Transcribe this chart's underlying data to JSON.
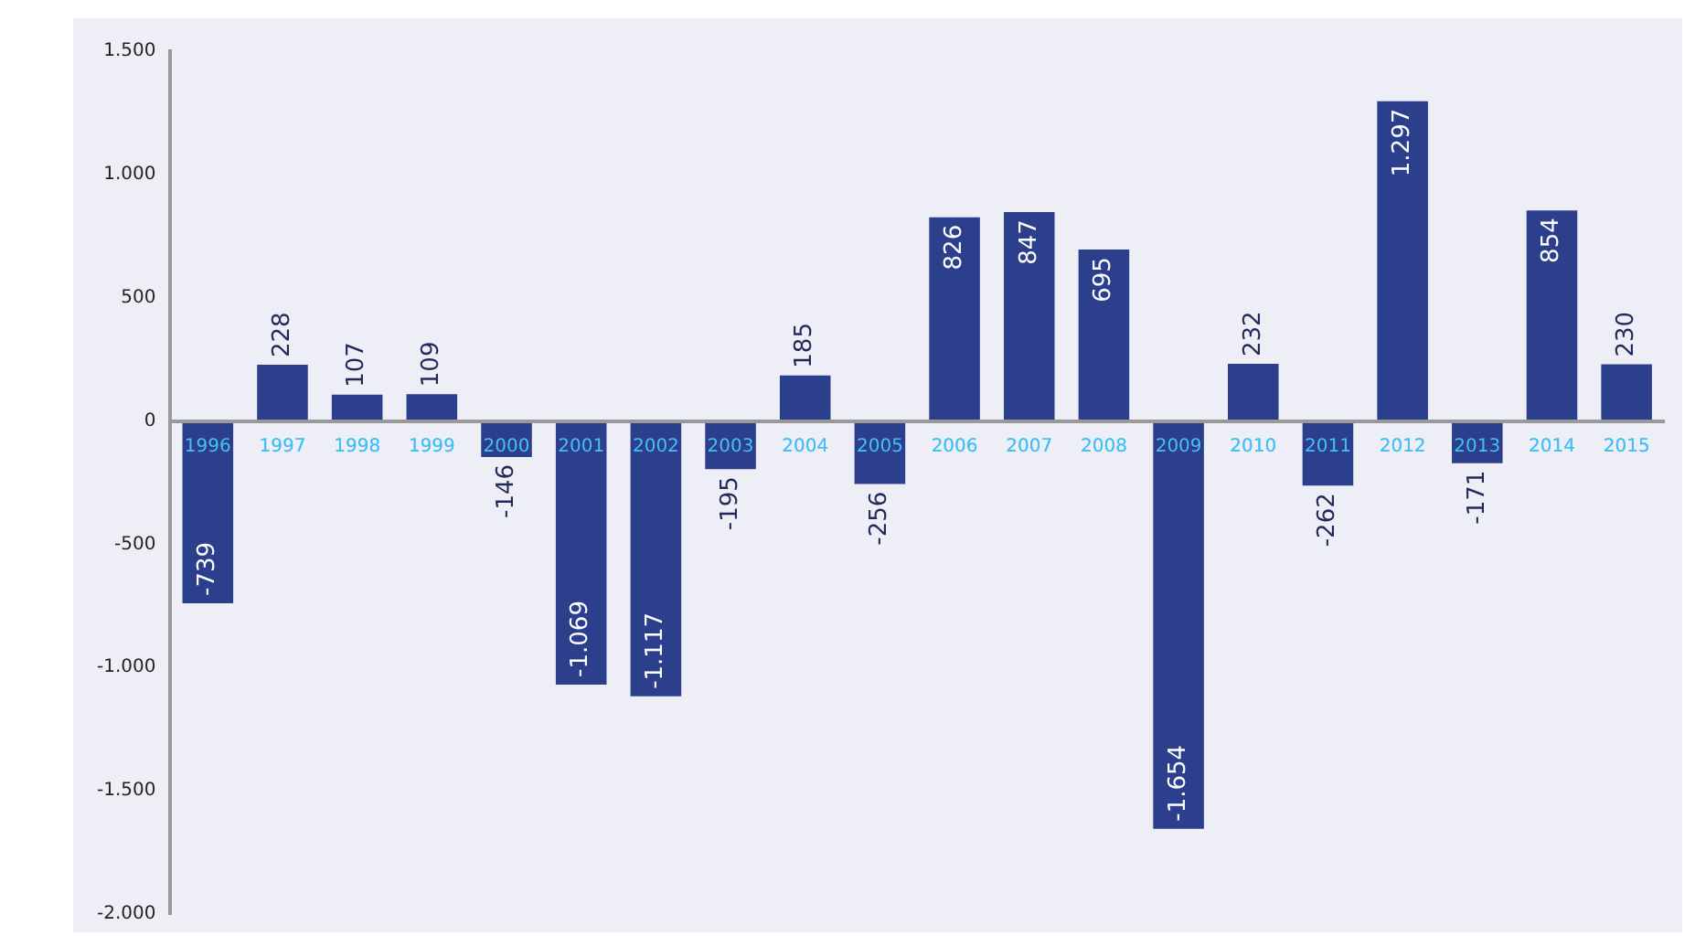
{
  "chart_data": {
    "type": "bar",
    "categories": [
      "1996",
      "1997",
      "1998",
      "1999",
      "2000",
      "2001",
      "2002",
      "2003",
      "2004",
      "2005",
      "2006",
      "2007",
      "2008",
      "2009",
      "2010",
      "2011",
      "2012",
      "2013",
      "2014",
      "2015"
    ],
    "values": [
      -739,
      228,
      107,
      109,
      -146,
      -1069,
      -1117,
      -195,
      185,
      -256,
      826,
      847,
      695,
      -1654,
      232,
      -262,
      1297,
      -171,
      854,
      230
    ],
    "value_labels": [
      "-739",
      "228",
      "107",
      "109",
      "-146",
      "-1.069",
      "-1.117",
      "-195",
      "185",
      "-256",
      "826",
      "847",
      "695",
      "-1.654",
      "232",
      "-262",
      "1.297",
      "-171",
      "854",
      "230"
    ],
    "color": "#2b3f8c",
    "ylim": [
      -2000,
      1500
    ],
    "yticks": [
      {
        "value": -2000,
        "label": "-2.000"
      },
      {
        "value": -1500,
        "label": "-1.500"
      },
      {
        "value": -1000,
        "label": "-1.000"
      },
      -500,
      0,
      500,
      {
        "value": 1000,
        "label": "1.000"
      },
      {
        "value": 1500,
        "label": "1.500"
      }
    ],
    "grid": false,
    "legend": false
  }
}
